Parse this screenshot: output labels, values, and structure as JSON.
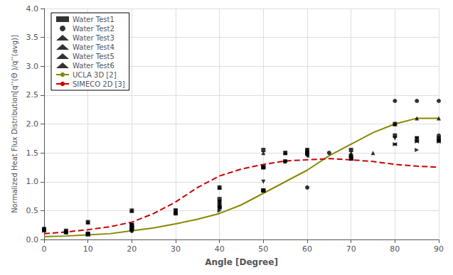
{
  "chart_data": {
    "type": "scatter",
    "title": "",
    "xlabel": "Angle [Degree]",
    "ylabel": "Normalized Heat Flux Distribution[q’’(Θ )/q’’(avg)]",
    "xlim": [
      0,
      90
    ],
    "ylim": [
      0.0,
      4.0
    ],
    "xticks": [
      0,
      10,
      20,
      30,
      40,
      50,
      60,
      70,
      80,
      90
    ],
    "yticks": [
      {
        "value": 0.0,
        "label": "0.0"
      },
      0.5,
      {
        "value": 1.0,
        "label": "1.0"
      },
      1.5,
      {
        "value": 2.0,
        "label": "2.0"
      },
      2.5,
      {
        "value": 3.0,
        "label": "3.0"
      },
      3.5,
      {
        "value": 4.0,
        "label": "4.0"
      }
    ],
    "grid": true,
    "legend": "upper left",
    "series": [
      {
        "name": "Water Test1",
        "type": "scatter",
        "marker": "square",
        "color": "#000000",
        "x": [
          0,
          5,
          10,
          10,
          20,
          20,
          20,
          30,
          40,
          40,
          40,
          50,
          50,
          50,
          55,
          60,
          60,
          60,
          70,
          70,
          80,
          80,
          85,
          90
        ],
        "values": [
          0.18,
          0.15,
          0.1,
          0.3,
          0.2,
          0.25,
          0.5,
          0.5,
          0.6,
          0.7,
          0.9,
          0.85,
          1.25,
          1.55,
          1.5,
          1.5,
          1.5,
          1.55,
          1.4,
          1.55,
          1.8,
          2.0,
          1.75,
          1.75
        ]
      },
      {
        "name": "Water Test2",
        "type": "scatter",
        "marker": "circle",
        "color": "#000000",
        "x": [
          0,
          5,
          10,
          20,
          20,
          30,
          40,
          40,
          50,
          50,
          55,
          60,
          60,
          65,
          70,
          80,
          85,
          90,
          90
        ],
        "values": [
          0.18,
          0.12,
          0.1,
          0.15,
          0.2,
          0.45,
          0.55,
          0.65,
          0.85,
          1.25,
          1.35,
          0.9,
          1.5,
          1.5,
          1.45,
          2.4,
          2.4,
          2.4,
          1.8
        ]
      },
      {
        "name": "Water Test3",
        "type": "scatter",
        "marker": "triangle-up",
        "color": "#000000",
        "x": [
          0,
          5,
          10,
          10,
          20,
          20,
          30,
          40,
          40,
          50,
          50,
          55,
          60,
          60,
          70,
          75,
          80,
          85,
          90,
          90
        ],
        "values": [
          0.18,
          0.15,
          0.1,
          0.3,
          0.2,
          0.5,
          0.5,
          0.6,
          0.9,
          0.85,
          1.5,
          1.5,
          1.5,
          1.55,
          1.5,
          1.5,
          2.0,
          2.1,
          2.1,
          1.75
        ]
      },
      {
        "name": "Water Test4",
        "type": "scatter",
        "marker": "triangle-down",
        "color": "#000000",
        "x": [
          0,
          5,
          10,
          20,
          20,
          30,
          40,
          40,
          50,
          50,
          55,
          60,
          60,
          70,
          80,
          85,
          90
        ],
        "values": [
          0.15,
          0.12,
          0.08,
          0.15,
          0.25,
          0.5,
          0.55,
          0.65,
          1.0,
          1.25,
          1.35,
          1.45,
          1.5,
          1.4,
          1.75,
          1.75,
          1.7
        ]
      },
      {
        "name": "Water Test5",
        "type": "scatter",
        "marker": "triangle-left",
        "color": "#000000",
        "x": [
          0,
          5,
          10,
          20,
          20,
          30,
          40,
          50,
          50,
          60,
          60,
          70,
          80,
          85,
          90
        ],
        "values": [
          0.15,
          0.12,
          0.08,
          0.2,
          0.25,
          0.45,
          0.55,
          0.85,
          1.25,
          1.45,
          1.5,
          1.4,
          1.65,
          1.7,
          1.7
        ]
      },
      {
        "name": "Water Test6",
        "type": "scatter",
        "marker": "triangle-right",
        "color": "#000000",
        "x": [
          0,
          5,
          10,
          20,
          20,
          30,
          40,
          50,
          50,
          55,
          60,
          70,
          80,
          85,
          85,
          90
        ],
        "values": [
          0.15,
          0.12,
          0.08,
          0.18,
          0.25,
          0.45,
          0.5,
          0.85,
          1.25,
          1.35,
          1.5,
          1.45,
          1.65,
          1.55,
          1.7,
          1.7
        ]
      },
      {
        "name": "UCLA 3D [2]",
        "type": "line",
        "line_style": "solid",
        "color": "#888800",
        "x": [
          0,
          5,
          10,
          15,
          20,
          25,
          30,
          35,
          40,
          45,
          50,
          55,
          60,
          65,
          70,
          75,
          80,
          85,
          90
        ],
        "values": [
          0.05,
          0.06,
          0.08,
          0.1,
          0.15,
          0.2,
          0.27,
          0.35,
          0.45,
          0.6,
          0.8,
          1.0,
          1.2,
          1.45,
          1.65,
          1.85,
          2.0,
          2.1,
          2.1
        ]
      },
      {
        "name": "SIMECO 2D [3]",
        "type": "line",
        "line_style": "dashed",
        "color": "#cc0000",
        "x": [
          0,
          5,
          10,
          15,
          20,
          25,
          30,
          35,
          40,
          45,
          50,
          55,
          60,
          65,
          70,
          75,
          80,
          85,
          90
        ],
        "values": [
          0.1,
          0.13,
          0.17,
          0.22,
          0.3,
          0.45,
          0.65,
          0.9,
          1.1,
          1.22,
          1.3,
          1.36,
          1.38,
          1.4,
          1.38,
          1.35,
          1.3,
          1.27,
          1.25
        ]
      }
    ]
  }
}
